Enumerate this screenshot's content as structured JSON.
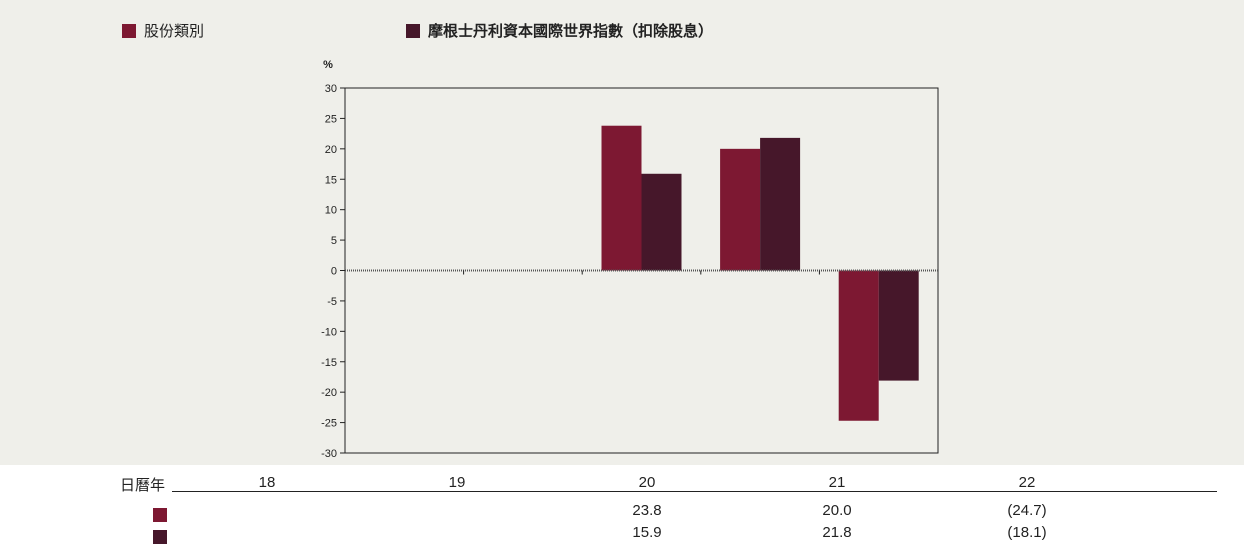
{
  "colors": {
    "series1": "#7d1832",
    "series2": "#46172a",
    "background": "#efefea"
  },
  "legend": {
    "series1_label": "股份類別",
    "series2_label": "摩根士丹利資本國際世界指數（扣除股息）"
  },
  "table": {
    "header_label": "日曆年",
    "years": [
      "18",
      "19",
      "20",
      "21",
      "22"
    ],
    "series1_values": [
      "",
      "",
      "23.8",
      "20.0",
      "(24.7)"
    ],
    "series2_values": [
      "",
      "",
      "15.9",
      "21.8",
      "(18.1)"
    ]
  },
  "chart_data": {
    "type": "bar",
    "categories": [
      "18",
      "19",
      "20",
      "21",
      "22"
    ],
    "series": [
      {
        "name": "股份類別",
        "values": [
          null,
          null,
          23.8,
          20.0,
          -24.7
        ]
      },
      {
        "name": "摩根士丹利資本國際世界指數（扣除股息）",
        "values": [
          null,
          null,
          15.9,
          21.8,
          -18.1
        ]
      }
    ],
    "ylabel": "%",
    "ylim": [
      -30,
      30
    ],
    "yticks": [
      30,
      25,
      20,
      15,
      10,
      5,
      0,
      -5,
      -10,
      -15,
      -20,
      -25,
      -30
    ],
    "grid": false,
    "legend_position": "top"
  }
}
